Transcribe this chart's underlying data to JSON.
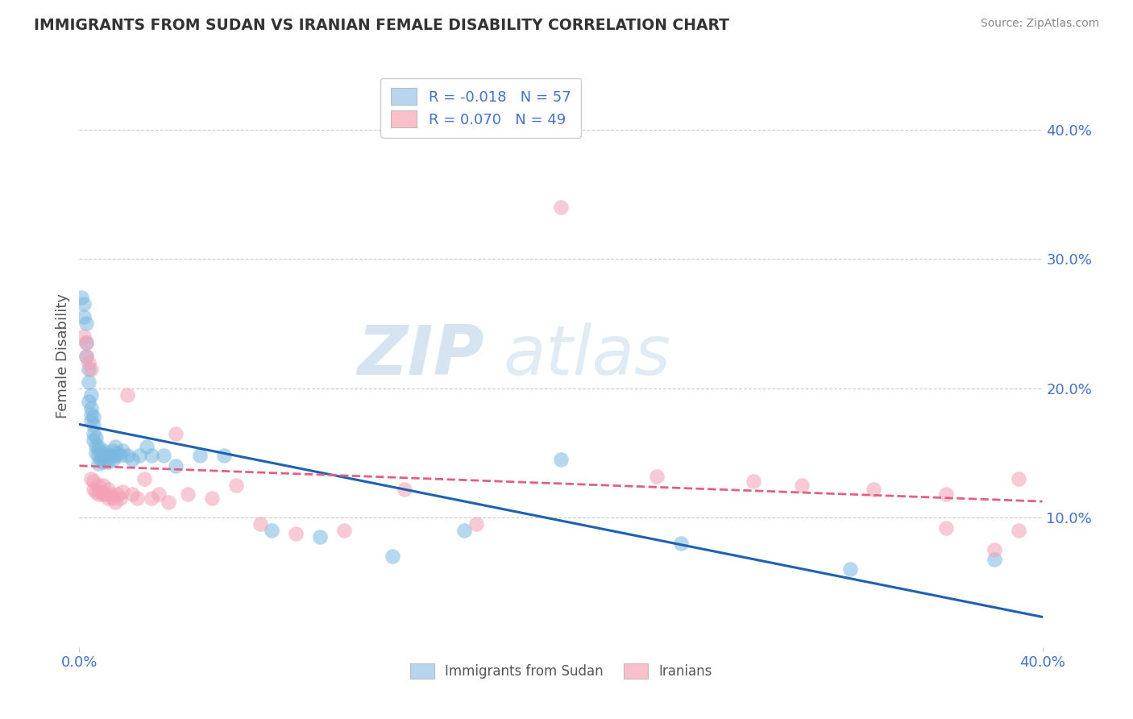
{
  "title": "IMMIGRANTS FROM SUDAN VS IRANIAN FEMALE DISABILITY CORRELATION CHART",
  "source": "Source: ZipAtlas.com",
  "xlabel": "",
  "ylabel": "Female Disability",
  "watermark_zip": "ZIP",
  "watermark_atlas": "atlas",
  "xlim": [
    0.0,
    0.4
  ],
  "ylim": [
    0.0,
    0.45
  ],
  "ytick_labels_right": [
    "10.0%",
    "20.0%",
    "30.0%",
    "40.0%"
  ],
  "ytick_vals_right": [
    0.1,
    0.2,
    0.3,
    0.4
  ],
  "series1_color": "#7bb8e0",
  "series2_color": "#f4a0b5",
  "series1_label": "Immigrants from Sudan",
  "series2_label": "Iranians",
  "series1_R": -0.018,
  "series1_N": 57,
  "series2_R": 0.07,
  "series2_N": 49,
  "legend_box_color1": "#b8d5ee",
  "legend_box_color2": "#f9c0cc",
  "trend1_color": "#2060b0",
  "trend2_color": "#e06080",
  "background_color": "#ffffff",
  "grid_color": "#cccccc",
  "series1_x": [
    0.001,
    0.002,
    0.002,
    0.003,
    0.003,
    0.003,
    0.004,
    0.004,
    0.004,
    0.005,
    0.005,
    0.005,
    0.005,
    0.006,
    0.006,
    0.006,
    0.006,
    0.007,
    0.007,
    0.007,
    0.008,
    0.008,
    0.008,
    0.009,
    0.009,
    0.01,
    0.01,
    0.01,
    0.011,
    0.011,
    0.012,
    0.012,
    0.013,
    0.014,
    0.014,
    0.015,
    0.015,
    0.016,
    0.017,
    0.018,
    0.02,
    0.022,
    0.025,
    0.028,
    0.03,
    0.035,
    0.04,
    0.05,
    0.06,
    0.08,
    0.1,
    0.13,
    0.16,
    0.2,
    0.25,
    0.32,
    0.38
  ],
  "series1_y": [
    0.27,
    0.265,
    0.255,
    0.25,
    0.235,
    0.225,
    0.215,
    0.205,
    0.19,
    0.195,
    0.185,
    0.18,
    0.175,
    0.178,
    0.172,
    0.165,
    0.16,
    0.162,
    0.155,
    0.15,
    0.155,
    0.148,
    0.142,
    0.15,
    0.145,
    0.152,
    0.148,
    0.143,
    0.15,
    0.145,
    0.148,
    0.143,
    0.148,
    0.152,
    0.145,
    0.155,
    0.148,
    0.15,
    0.148,
    0.152,
    0.148,
    0.145,
    0.148,
    0.155,
    0.148,
    0.148,
    0.14,
    0.148,
    0.148,
    0.09,
    0.085,
    0.07,
    0.09,
    0.145,
    0.08,
    0.06,
    0.068
  ],
  "series2_x": [
    0.002,
    0.003,
    0.003,
    0.004,
    0.005,
    0.005,
    0.006,
    0.006,
    0.007,
    0.008,
    0.008,
    0.009,
    0.01,
    0.01,
    0.011,
    0.012,
    0.012,
    0.013,
    0.014,
    0.015,
    0.016,
    0.017,
    0.018,
    0.02,
    0.022,
    0.024,
    0.027,
    0.03,
    0.033,
    0.037,
    0.04,
    0.045,
    0.055,
    0.065,
    0.075,
    0.09,
    0.11,
    0.135,
    0.165,
    0.2,
    0.24,
    0.28,
    0.3,
    0.33,
    0.36,
    0.38,
    0.39,
    0.39,
    0.36
  ],
  "series2_y": [
    0.24,
    0.235,
    0.225,
    0.22,
    0.215,
    0.13,
    0.128,
    0.122,
    0.12,
    0.125,
    0.118,
    0.12,
    0.125,
    0.118,
    0.118,
    0.122,
    0.115,
    0.118,
    0.115,
    0.112,
    0.118,
    0.115,
    0.12,
    0.195,
    0.118,
    0.115,
    0.13,
    0.115,
    0.118,
    0.112,
    0.165,
    0.118,
    0.115,
    0.125,
    0.095,
    0.088,
    0.09,
    0.122,
    0.095,
    0.34,
    0.132,
    0.128,
    0.125,
    0.122,
    0.118,
    0.075,
    0.13,
    0.09,
    0.092
  ]
}
